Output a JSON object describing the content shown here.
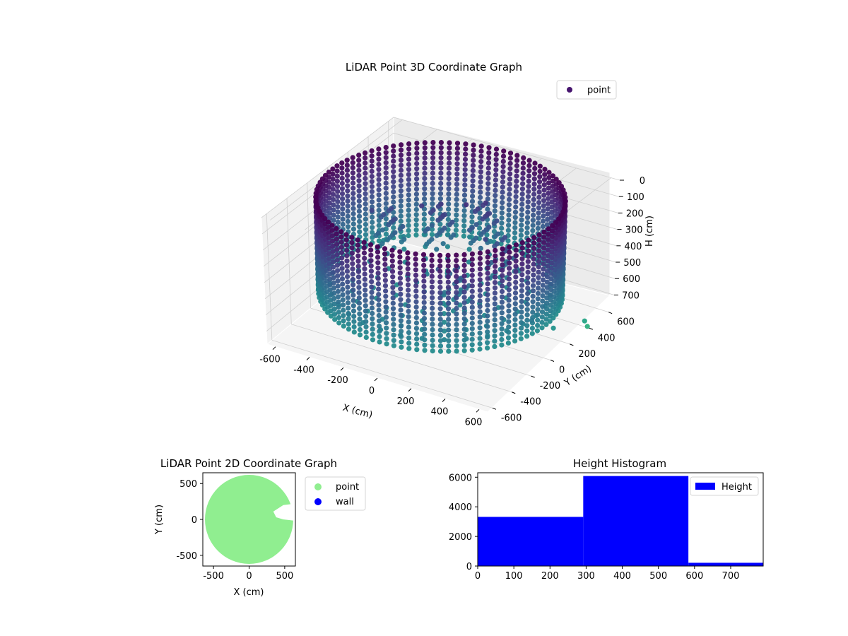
{
  "chart_data": [
    {
      "type": "scatter",
      "projection": "3d",
      "title": "LiDAR Point 3D Coordinate Graph",
      "xlabel": "X (cm)",
      "ylabel": "Y (cm)",
      "zlabel": "H (cm)",
      "xlim": [
        -650,
        650
      ],
      "ylim": [
        -650,
        650
      ],
      "zlim": [
        0,
        780
      ],
      "z_inverted": true,
      "x_ticks": [
        "-600",
        "-400",
        "-200",
        "0",
        "200",
        "400",
        "600"
      ],
      "y_ticks": [
        "-600",
        "-400",
        "-200",
        "0",
        "200",
        "400",
        "600"
      ],
      "z_ticks": [
        "0",
        "100",
        "200",
        "300",
        "400",
        "500",
        "600",
        "700"
      ],
      "grid": true,
      "legend": {
        "position": "top-right",
        "entries": [
          {
            "label": "point",
            "color": "#46146e"
          }
        ]
      },
      "colormap": "viridis",
      "series": [
        {
          "name": "point",
          "wall_radius": 620,
          "height_range": [
            0,
            580
          ],
          "interior_objects": [
            {
              "x": -380,
              "y": 150,
              "h_top": 250
            },
            {
              "x": -150,
              "y": 250,
              "h_top": 200
            },
            {
              "x": 50,
              "y": 350,
              "h_top": 180
            },
            {
              "x": 250,
              "y": 200,
              "h_top": 260
            },
            {
              "x": 150,
              "y": -100,
              "h_top": 330
            }
          ],
          "outliers": [
            {
              "x": 620,
              "y": -150,
              "h": 480
            },
            {
              "x": 640,
              "y": 40,
              "h": 610
            },
            {
              "x": 660,
              "y": 330,
              "h": 700
            },
            {
              "x": 650,
              "y": 380,
              "h": 760
            }
          ]
        }
      ]
    },
    {
      "type": "scatter",
      "title": "LiDAR Point 2D Coordinate Graph",
      "xlabel": "X (cm)",
      "ylabel": "Y (cm)",
      "xlim": [
        -650,
        650
      ],
      "ylim": [
        -650,
        650
      ],
      "x_ticks": [
        -500,
        0,
        500
      ],
      "y_ticks": [
        -500,
        0,
        500
      ],
      "legend": {
        "position": "outside-right",
        "entries": [
          {
            "label": "point",
            "color": "#90ee90"
          },
          {
            "label": "wall",
            "color": "#0000ff"
          }
        ]
      },
      "series": [
        {
          "name": "point",
          "color": "#90ee90",
          "radius": 620,
          "notch": [
            [
              650,
              220
            ],
            [
              480,
              200
            ],
            [
              340,
              110
            ],
            [
              380,
              30
            ],
            [
              480,
              0
            ],
            [
              650,
              -20
            ]
          ]
        },
        {
          "name": "wall",
          "color": "#0000ff",
          "values": []
        }
      ]
    },
    {
      "type": "bar",
      "subtype": "histogram",
      "title": "Height Histogram",
      "xlim": [
        0,
        790
      ],
      "ylim": [
        0,
        6300
      ],
      "x_ticks": [
        0,
        100,
        200,
        300,
        400,
        500,
        600,
        700
      ],
      "y_ticks": [
        0,
        2000,
        4000,
        6000
      ],
      "legend": {
        "position": "top-right",
        "entries": [
          {
            "label": "Height",
            "color": "#0000ff"
          }
        ]
      },
      "series": [
        {
          "name": "Height",
          "color": "#0000ff",
          "bins": [
            {
              "x0": 0,
              "x1": 292,
              "count": 3320
            },
            {
              "x0": 292,
              "x1": 583,
              "count": 6080
            },
            {
              "x0": 583,
              "x1": 790,
              "count": 220
            }
          ]
        }
      ]
    }
  ]
}
